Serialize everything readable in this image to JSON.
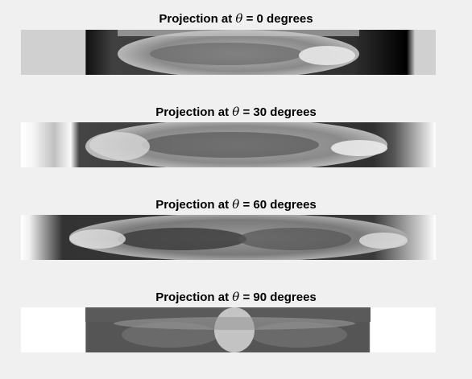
{
  "projections": [
    {
      "prefix": "Projection at ",
      "symbol": "θ",
      "suffix": " = 0 degrees"
    },
    {
      "prefix": "Projection at ",
      "symbol": "θ",
      "suffix": " = 30 degrees"
    },
    {
      "prefix": "Projection at ",
      "symbol": "θ",
      "suffix": " = 60 degrees"
    },
    {
      "prefix": "Projection at ",
      "symbol": "θ",
      "suffix": " = 90 degrees"
    }
  ]
}
